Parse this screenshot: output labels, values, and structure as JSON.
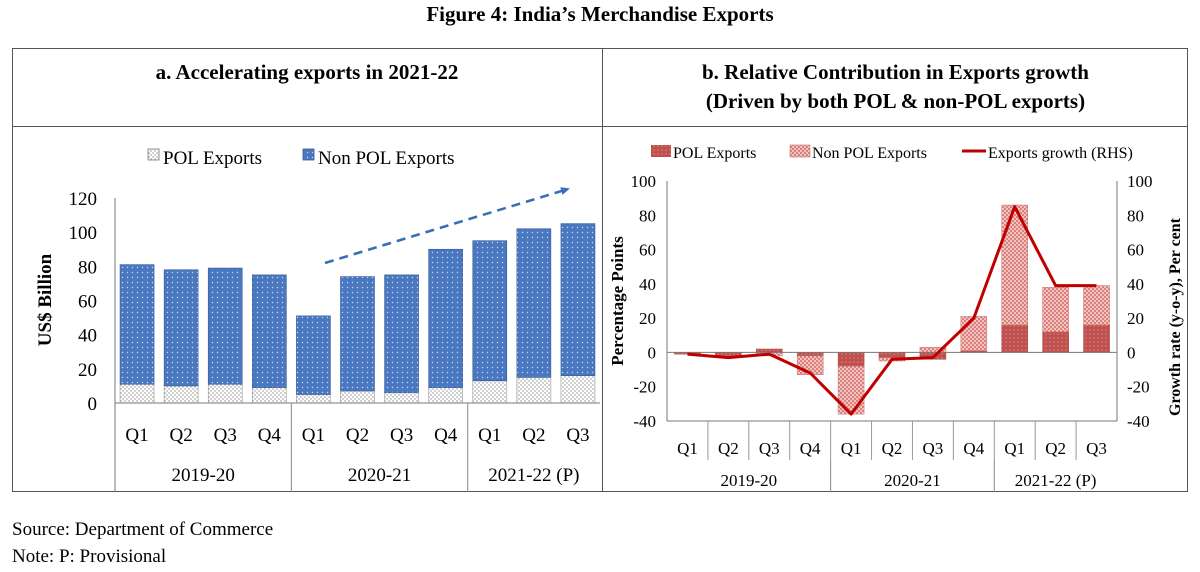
{
  "figure_title": "Figure 4: India’s Merchandise Exports",
  "source_note": "Source: Department of Commerce",
  "provisional_note": "Note: P: Provisional",
  "colors": {
    "non_pol_blue": "#4a78c0",
    "pol_red": "#c0504d",
    "non_pol_pink": "#e6a8a4",
    "growth_line": "#c00000",
    "arrow": "#3a6fb5"
  },
  "chart_data": [
    {
      "type": "bar",
      "stacked": true,
      "title": "a. Accelerating exports in 2021-22",
      "ylabel": "US$ Billion",
      "ylim": [
        0,
        120
      ],
      "yticks": [
        0,
        20,
        40,
        60,
        80,
        100,
        120
      ],
      "categories": [
        "Q1",
        "Q2",
        "Q3",
        "Q4",
        "Q1",
        "Q2",
        "Q3",
        "Q4",
        "Q1",
        "Q2",
        "Q3"
      ],
      "groups": [
        {
          "label": "2019-20",
          "count": 4
        },
        {
          "label": "2020-21",
          "count": 4
        },
        {
          "label": "2021-22 (P)",
          "count": 3
        }
      ],
      "legend": "top",
      "series": [
        {
          "name": "POL Exports",
          "values": [
            11,
            10,
            11,
            9,
            5,
            7,
            6,
            9,
            13,
            15,
            16
          ]
        },
        {
          "name": "Non POL Exports",
          "values": [
            70,
            68,
            68,
            66,
            46,
            67,
            69,
            81,
            82,
            87,
            89
          ]
        }
      ]
    },
    {
      "type": "bar",
      "stacked": true,
      "title": "b. Relative Contribution in Exports growth",
      "subtitle": "(Driven by both POL & non-POL exports)",
      "ylabel": "Percentage Points",
      "y2label": "Growth rate (y-o-y), Per cent",
      "ylim": [
        -40,
        100
      ],
      "y2lim": [
        -40,
        100
      ],
      "yticks": [
        -40,
        -20,
        0,
        20,
        40,
        60,
        80,
        100
      ],
      "categories": [
        "Q1",
        "Q2",
        "Q3",
        "Q4",
        "Q1",
        "Q2",
        "Q3",
        "Q4",
        "Q1",
        "Q2",
        "Q3"
      ],
      "groups": [
        {
          "label": "2019-20",
          "count": 4
        },
        {
          "label": "2020-21",
          "count": 4
        },
        {
          "label": "2021-22 (P)",
          "count": 3
        }
      ],
      "legend": "top",
      "series": [
        {
          "name": "POL Exports",
          "values": [
            -1,
            -2,
            2,
            -2,
            -8,
            -3,
            -4,
            1,
            16,
            12,
            16
          ]
        },
        {
          "name": "Non POL Exports",
          "values": [
            0,
            -1,
            -2,
            -11,
            -28,
            -2,
            3,
            20,
            70,
            26,
            23
          ]
        },
        {
          "name": "Exports growth (RHS)",
          "kind": "line",
          "axis": "right",
          "values": [
            -1,
            -3,
            -1,
            -12,
            -36,
            -4,
            -3,
            20,
            85,
            39,
            39
          ]
        }
      ]
    }
  ]
}
